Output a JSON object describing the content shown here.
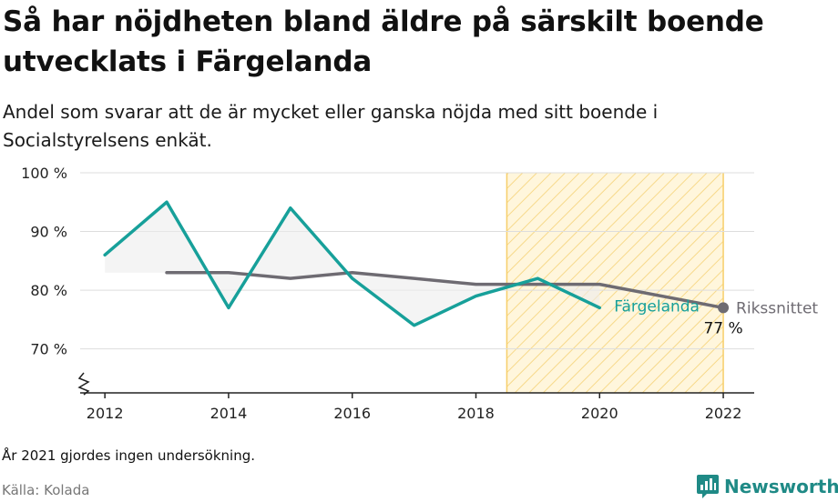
{
  "header": {
    "title": "Så har nöjdheten bland äldre på särskilt boende utvecklats i Färgelanda",
    "subtitle": "Andel som svarar att de är mycket eller ganska nöjda med sitt boende i Socialstyrelsens enkät."
  },
  "footer": {
    "note": "År 2021 gjordes ingen undersökning.",
    "source": "Källa: Kolada",
    "brand": "Newsworthy"
  },
  "colors": {
    "local": "#17a09a",
    "national": "#6e6b72",
    "highlight_fill": "#fde9b6",
    "highlight_stroke": "#f7cf6a",
    "gap_fill": "#ececec"
  },
  "chart_data": {
    "type": "line",
    "x_ticks": [
      "2012",
      "2014",
      "2016",
      "2018",
      "2020",
      "2022"
    ],
    "y_ticks": [
      "70 %",
      "80 %",
      "90 %",
      "100 %"
    ],
    "y_tick_values": [
      70,
      80,
      90,
      100
    ],
    "xlim": [
      2011.6,
      2022.5
    ],
    "ylim": [
      62.5,
      100
    ],
    "y_axis_break": true,
    "grid": true,
    "highlight_range": [
      2018.5,
      2022
    ],
    "series": [
      {
        "name": "Färgelanda",
        "x": [
          2012,
          2013,
          2014,
          2015,
          2016,
          2017,
          2018,
          2019,
          2020
        ],
        "values": [
          86,
          95,
          77,
          94,
          82,
          74,
          79,
          82,
          77
        ]
      },
      {
        "name": "Rikssnittet",
        "x": [
          2013,
          2014,
          2015,
          2016,
          2017,
          2018,
          2019,
          2020,
          2022
        ],
        "values": [
          83,
          83,
          82,
          83,
          82,
          81,
          81,
          81,
          77
        ]
      }
    ],
    "end_label": "77 %"
  }
}
